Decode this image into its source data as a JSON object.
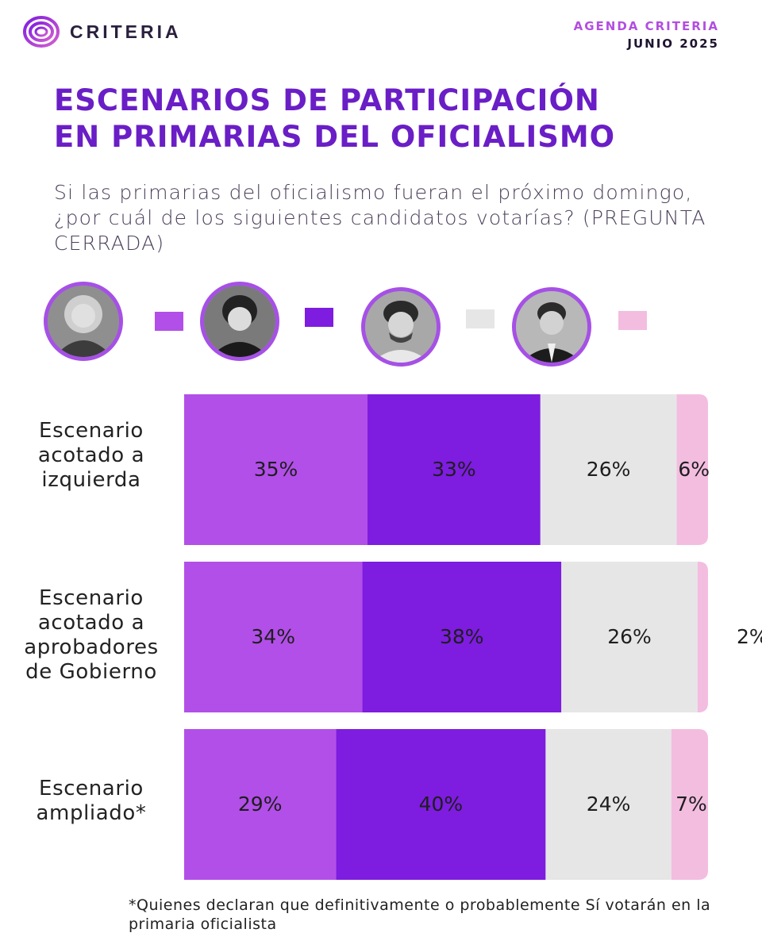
{
  "brand": {
    "name": "CRITERIA",
    "agenda_label": "AGENDA CRITERIA",
    "date": "JUNIO 2025"
  },
  "colors": {
    "accent": "#6a1ec6",
    "series": [
      "#b24fe8",
      "#7e1ce0",
      "#e6e6e6",
      "#f3bde0"
    ],
    "avatar_border": "#a650e6"
  },
  "title_lines": [
    "ESCENARIOS DE PARTICIPACIÓN",
    "EN PRIMARIAS DEL OFICIALISMO"
  ],
  "subtitle": "Si las primarias del oficialismo fueran el próximo domingo, ¿por cuál de los siguientes candidatos votarías? (PREGUNTA CERRADA)",
  "legend": [
    {
      "icon": "candidate-1-photo",
      "swatch_color": "#b24fe8"
    },
    {
      "icon": "candidate-2-photo",
      "swatch_color": "#7e1ce0"
    },
    {
      "icon": "candidate-3-photo",
      "swatch_color": "#e6e6e6"
    },
    {
      "icon": "candidate-4-photo",
      "swatch_color": "#f3bde0"
    }
  ],
  "chart_data": {
    "type": "bar",
    "orientation": "horizontal",
    "stacked": true,
    "categories": [
      "Escenario acotado a izquierda",
      "Escenario acotado a aprobadores de Gobierno",
      "Escenario ampliado*"
    ],
    "category_label_lines": [
      [
        "Escenario",
        "acotado a",
        "izquierda"
      ],
      [
        "Escenario",
        "acotado a",
        "aprobadores",
        "de Gobierno"
      ],
      [
        "Escenario",
        "ampliado*"
      ]
    ],
    "series": [
      {
        "name": "Candidato 1",
        "color": "#b24fe8",
        "values": [
          35,
          34,
          29
        ]
      },
      {
        "name": "Candidato 2",
        "color": "#7e1ce0",
        "values": [
          33,
          38,
          40
        ]
      },
      {
        "name": "Candidato 3",
        "color": "#e6e6e6",
        "values": [
          26,
          26,
          24
        ]
      },
      {
        "name": "Candidato 4",
        "color": "#f3bde0",
        "values": [
          6,
          2,
          7
        ]
      }
    ],
    "data_labels": [
      [
        "35%",
        "33%",
        "26%",
        "6%"
      ],
      [
        "34%",
        "38%",
        "26%",
        "2%"
      ],
      [
        "29%",
        "40%",
        "24%",
        "7%"
      ]
    ],
    "title": "ESCENARIOS DE PARTICIPACIÓN EN PRIMARIAS DEL OFICIALISMO",
    "xlabel": "",
    "ylabel": ""
  },
  "footnote": "*Quienes declaran que definitivamente o probablemente Sí votarán en la primaria oficialista"
}
